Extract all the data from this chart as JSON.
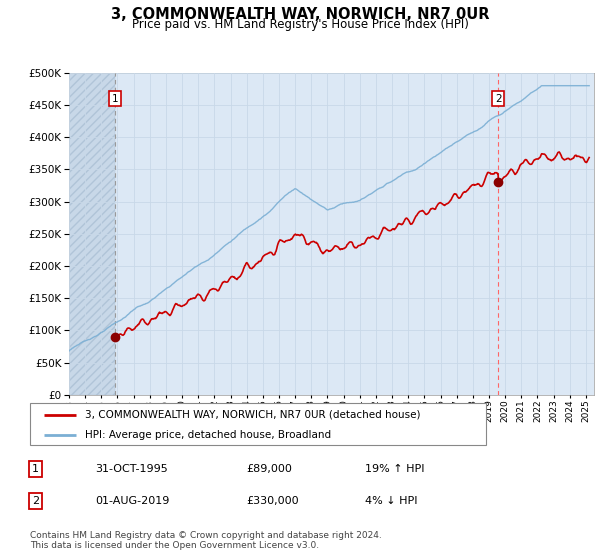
{
  "title": "3, COMMONWEALTH WAY, NORWICH, NR7 0UR",
  "subtitle": "Price paid vs. HM Land Registry's House Price Index (HPI)",
  "legend_line1": "3, COMMONWEALTH WAY, NORWICH, NR7 0UR (detached house)",
  "legend_line2": "HPI: Average price, detached house, Broadland",
  "annotation1_date": "31-OCT-1995",
  "annotation1_price": "£89,000",
  "annotation1_hpi": "19% ↑ HPI",
  "annotation2_date": "01-AUG-2019",
  "annotation2_price": "£330,000",
  "annotation2_hpi": "4% ↓ HPI",
  "footer": "Contains HM Land Registry data © Crown copyright and database right 2024.\nThis data is licensed under the Open Government Licence v3.0.",
  "ylim": [
    0,
    500000
  ],
  "yticks": [
    0,
    50000,
    100000,
    150000,
    200000,
    250000,
    300000,
    350000,
    400000,
    450000,
    500000
  ],
  "hpi_color": "#7bafd4",
  "price_color": "#cc0000",
  "vline_color": "#ff6666",
  "vline1_color": "#888888",
  "grid_color": "#c8d8e8",
  "bg_color": "#dce8f5",
  "plot_bg": "#dce8f5",
  "t1": 1995.83,
  "t2": 2019.58,
  "sale1_price": 89000,
  "sale2_price": 330000
}
